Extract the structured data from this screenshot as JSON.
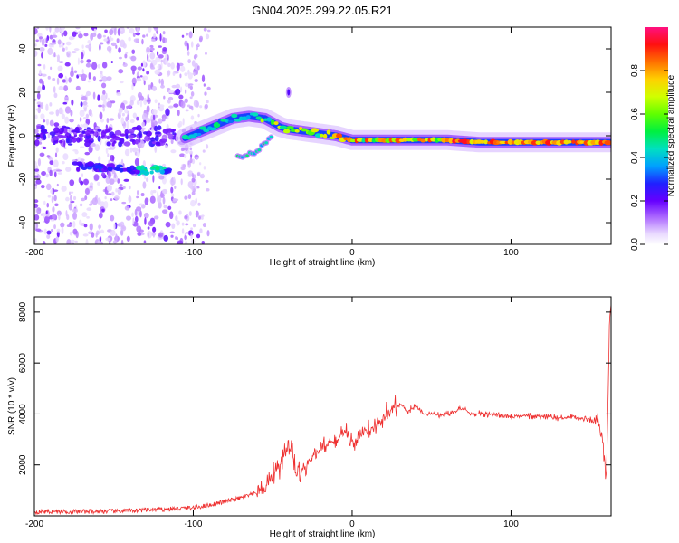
{
  "title": "GN04.2025.299.22.05.R21",
  "chart_data": [
    {
      "type": "heatmap",
      "title": "GN04.2025.299.22.05.R21",
      "xlabel": "Height of straight line (km)",
      "ylabel": "Frequency (Hz)",
      "xlim": [
        -200,
        163
      ],
      "ylim": [
        -50,
        50
      ],
      "xticks": [
        -200,
        -100,
        0,
        100
      ],
      "yticks": [
        40,
        20,
        0,
        -20,
        -40
      ],
      "colorbar": {
        "label": "Normalized spectral amplitude",
        "range": [
          0,
          1
        ],
        "ticks": [
          "0.0",
          "0.2",
          "0.4",
          "0.6",
          "0.8"
        ],
        "colors": [
          "#ffffff",
          "#cc99ff",
          "#6600ff",
          "#0044ff",
          "#00c8ff",
          "#00e070",
          "#40ff00",
          "#c8ff00",
          "#ffd000",
          "#ff6000",
          "#ff1010",
          "#ff1080"
        ]
      },
      "trace": {
        "x": [
          -105,
          -95,
          -85,
          -75,
          -65,
          -55,
          -45,
          -40,
          -30,
          -20,
          -10,
          0,
          20,
          40,
          60,
          80,
          100,
          120,
          140,
          162
        ],
        "y": [
          -1,
          2,
          5,
          8,
          9,
          8,
          4,
          3,
          2,
          1,
          0,
          -2,
          -2,
          -2,
          -2,
          -3,
          -3,
          -3,
          -3,
          -3
        ]
      },
      "side_branch": {
        "x": [
          -72,
          -66,
          -60,
          -55,
          -50
        ],
        "y": [
          -10,
          -9,
          -7,
          -4,
          0
        ]
      },
      "low_band": {
        "x": [
          -175,
          -165,
          -155,
          -145,
          -135,
          -125,
          -115
        ],
        "y": [
          -14,
          -14,
          -15,
          -15,
          -16,
          -16,
          -16
        ]
      }
    },
    {
      "type": "line",
      "xlabel": "Height of straight line (km)",
      "ylabel": "SNR (10 * v/v)",
      "xlim": [
        -200,
        163
      ],
      "ylim": [
        0,
        8600
      ],
      "xticks": [
        -200,
        -100,
        0,
        100
      ],
      "yticks": [
        2000,
        4000,
        6000,
        8000
      ],
      "color": "#ee3030",
      "series": {
        "x": [
          -200,
          -150,
          -120,
          -100,
          -90,
          -80,
          -70,
          -60,
          -55,
          -50,
          -45,
          -40,
          -37,
          -35,
          -30,
          -25,
          -20,
          -15,
          -10,
          -5,
          0,
          5,
          10,
          15,
          20,
          25,
          30,
          35,
          40,
          45,
          50,
          55,
          60,
          65,
          70,
          75,
          80,
          90,
          100,
          110,
          120,
          130,
          140,
          150,
          155,
          158,
          160,
          161,
          162,
          163
        ],
        "y": [
          160,
          180,
          250,
          320,
          420,
          560,
          700,
          900,
          1100,
          1500,
          2000,
          2700,
          2300,
          1600,
          1900,
          2300,
          2600,
          2800,
          3000,
          3200,
          2900,
          3100,
          3300,
          3500,
          3800,
          4200,
          4400,
          4100,
          4300,
          4000,
          4000,
          3950,
          4000,
          4100,
          4200,
          4000,
          4000,
          3950,
          3900,
          3950,
          3900,
          3850,
          3850,
          3800,
          3750,
          2800,
          1500,
          4300,
          7800,
          8300
        ]
      }
    }
  ]
}
